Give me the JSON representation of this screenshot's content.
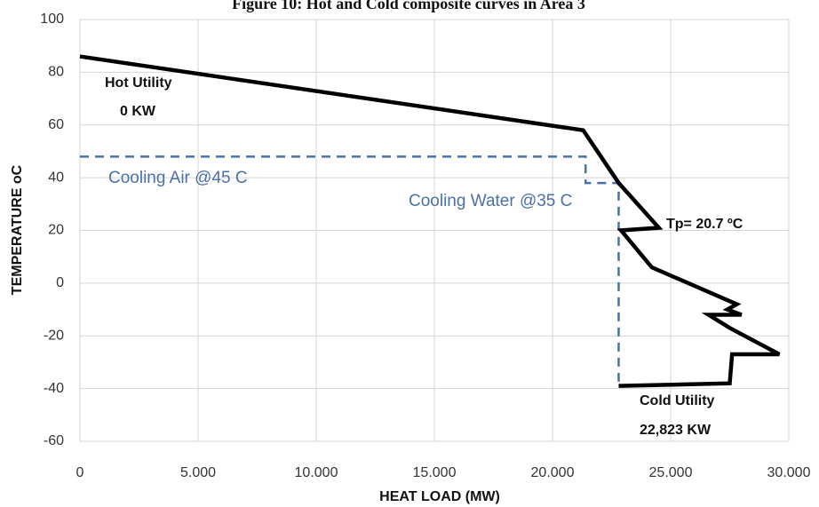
{
  "chart_data": {
    "type": "line",
    "title": "Figure 10: Hot and Cold composite curves in Area 3",
    "x_label": "HEAT LOAD (MW)",
    "y_label": "TEMPERATURE oC",
    "xlim": [
      0,
      30000
    ],
    "ylim": [
      -60,
      100
    ],
    "xticks": [
      0,
      {
        "value": 5000,
        "label": "5.000"
      },
      {
        "value": 10000,
        "label": "10.000"
      },
      {
        "value": 15000,
        "label": "15.000"
      },
      {
        "value": 20000,
        "label": "20.000"
      },
      {
        "value": 25000,
        "label": "25.000"
      },
      {
        "value": 30000,
        "label": "30.000"
      }
    ],
    "yticks": [
      -60,
      -40,
      -20,
      0,
      20,
      40,
      60,
      80,
      100
    ],
    "grid": true,
    "series": [
      {
        "color": "#000000",
        "dashed": false,
        "x": [
          0,
          21300,
          22800,
          24500,
          22900,
          24200,
          27800,
          27400,
          28000,
          26600,
          27500,
          29600,
          27600,
          27500,
          22800
        ],
        "values": [
          86,
          58,
          38,
          21,
          20,
          6,
          -8,
          -10,
          -12,
          -12,
          -17,
          -27,
          -27,
          -38,
          -39
        ]
      },
      {
        "color": "#4a70a8",
        "dashed": true,
        "x": [
          0,
          21400,
          21400,
          22800,
          22800
        ],
        "values": [
          48,
          48,
          38,
          38,
          -38
        ]
      }
    ],
    "annotations": [
      {
        "text": "Hot Utility"
      },
      {
        "text": "0 KW"
      },
      {
        "text": "Cooling Air @45 C"
      },
      {
        "text": "Cooling Water @35 C"
      },
      {
        "text": "Tp= 20.7 ºC"
      },
      {
        "text": "Cold Utility"
      },
      {
        "text": "22,823 KW"
      }
    ]
  }
}
